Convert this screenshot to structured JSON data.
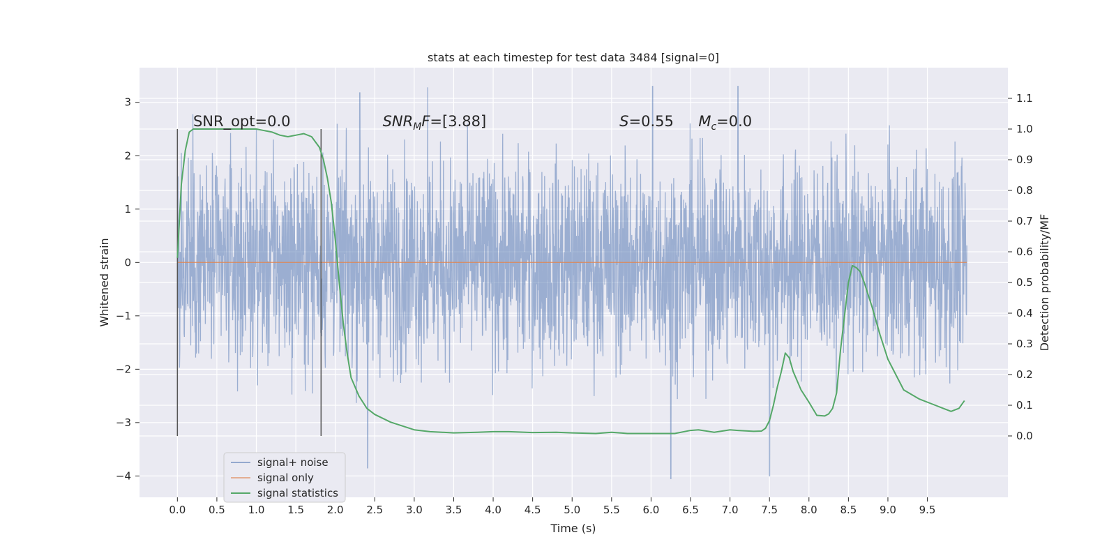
{
  "chart_data": {
    "type": "line",
    "title": "stats at each timestep for test data 3484 [signal=0]",
    "xlabel": "Time (s)",
    "ylabel": "Whitened strain",
    "y2label": "Detection probability/MF",
    "xlim": [
      -0.48,
      10.52
    ],
    "ylim": [
      -4.4,
      3.65
    ],
    "y2lim": [
      -0.2,
      1.2
    ],
    "xticks": [
      0.0,
      0.5,
      1.0,
      1.5,
      2.0,
      2.5,
      3.0,
      3.5,
      4.0,
      4.5,
      5.0,
      5.5,
      6.0,
      6.5,
      7.0,
      7.5,
      8.0,
      8.5,
      9.0,
      9.5
    ],
    "xtick_labels": [
      "0.0",
      "0.5",
      "1.0",
      "1.5",
      "2.0",
      "2.5",
      "3.0",
      "3.5",
      "4.0",
      "4.5",
      "5.0",
      "5.5",
      "6.0",
      "6.5",
      "7.0",
      "7.5",
      "8.0",
      "8.5",
      "9.0",
      "9.5"
    ],
    "yticks": [
      3,
      2,
      1,
      0,
      -1,
      -2,
      -3,
      -4
    ],
    "ytick_labels": [
      "3",
      "2",
      "1",
      "0",
      "−1",
      "−2",
      "−3",
      "−4"
    ],
    "y2ticks": [
      1.1,
      1.0,
      0.9,
      0.8,
      0.7,
      0.6,
      0.5,
      0.4,
      0.3,
      0.2,
      0.1,
      0.0
    ],
    "y2tick_labels": [
      "1.1",
      "1.0",
      "0.9",
      "0.8",
      "0.7",
      "0.6",
      "0.5",
      "0.4",
      "0.3",
      "0.2",
      "0.1",
      "0.0"
    ],
    "grid": true,
    "legend_position": "lower-left",
    "series": [
      {
        "name": "signal+ noise",
        "color": "#4c72b0",
        "axis": "left",
        "description": "dense whitened noise trace, roughly ±1.5 with spikes to about ±3",
        "envelope": {
          "t_start": 0.0,
          "t_end": 10.0,
          "typical_abs": 1.5,
          "max": 3.3,
          "min": -4.05
        },
        "spikes": [
          {
            "t": 2.41,
            "y": -3.85
          },
          {
            "t": 6.25,
            "y": -4.05
          },
          {
            "t": 7.5,
            "y": -4.0
          },
          {
            "t": 6.02,
            "y": 3.3
          },
          {
            "t": 3.17,
            "y": 3.28
          },
          {
            "t": 7.1,
            "y": 3.3
          },
          {
            "t": 2.31,
            "y": 3.18
          }
        ]
      },
      {
        "name": "signal only",
        "color": "#dd8452",
        "axis": "left",
        "x": [
          0.0,
          10.0
        ],
        "y": [
          0.0,
          0.0
        ]
      },
      {
        "name": "signal statistics",
        "color": "#55a868",
        "axis": "right",
        "x": [
          0.0,
          0.05,
          0.1,
          0.15,
          0.2,
          0.3,
          0.5,
          0.8,
          1.0,
          1.1,
          1.2,
          1.3,
          1.4,
          1.5,
          1.6,
          1.7,
          1.8,
          1.85,
          1.9,
          1.95,
          2.0,
          2.05,
          2.1,
          2.15,
          2.2,
          2.3,
          2.4,
          2.5,
          2.7,
          3.0,
          3.2,
          3.5,
          3.8,
          4.0,
          4.2,
          4.5,
          4.8,
          5.0,
          5.3,
          5.5,
          5.7,
          6.0,
          6.3,
          6.5,
          6.6,
          6.8,
          7.0,
          7.1,
          7.3,
          7.4,
          7.45,
          7.5,
          7.55,
          7.6,
          7.65,
          7.7,
          7.75,
          7.8,
          7.9,
          8.0,
          8.1,
          8.2,
          8.25,
          8.3,
          8.35,
          8.4,
          8.5,
          8.55,
          8.6,
          8.65,
          8.7,
          8.8,
          8.9,
          9.0,
          9.2,
          9.4,
          9.6,
          9.7,
          9.8,
          9.9,
          9.97
        ],
        "y": [
          0.58,
          0.82,
          0.93,
          0.99,
          1.0,
          1.0,
          1.0,
          1.0,
          1.0,
          0.995,
          0.99,
          0.98,
          0.975,
          0.98,
          0.985,
          0.975,
          0.94,
          0.9,
          0.84,
          0.76,
          0.64,
          0.5,
          0.37,
          0.27,
          0.19,
          0.13,
          0.09,
          0.07,
          0.045,
          0.02,
          0.014,
          0.01,
          0.012,
          0.014,
          0.014,
          0.011,
          0.012,
          0.01,
          0.008,
          0.012,
          0.008,
          0.008,
          0.008,
          0.018,
          0.02,
          0.012,
          0.02,
          0.018,
          0.015,
          0.016,
          0.025,
          0.05,
          0.1,
          0.16,
          0.21,
          0.27,
          0.255,
          0.21,
          0.15,
          0.11,
          0.067,
          0.065,
          0.072,
          0.09,
          0.14,
          0.28,
          0.5,
          0.555,
          0.548,
          0.535,
          0.5,
          0.42,
          0.33,
          0.25,
          0.15,
          0.12,
          0.1,
          0.09,
          0.08,
          0.09,
          0.115
        ]
      }
    ],
    "vlines": [
      {
        "t": 0.0,
        "y_from": -3.25,
        "y_to": 2.5,
        "color": "#555555"
      },
      {
        "t": 1.82,
        "y_from": -3.25,
        "y_to": 2.5,
        "color": "#555555"
      }
    ],
    "annotations": [
      {
        "kind": "plain",
        "text": "SNR_opt=0.0",
        "x": 0.2,
        "y": 2.55
      },
      {
        "kind": "snr_mf",
        "main": "SNR",
        "sub": "M",
        "tail": "F",
        "rest": "=[3.88]",
        "x": 2.6,
        "y": 2.55
      },
      {
        "kind": "italic",
        "main": "S",
        "rest": "=0.55",
        "x": 5.6,
        "y": 2.55
      },
      {
        "kind": "mc",
        "main": "M",
        "sub": "c",
        "rest": "=0.0",
        "x": 6.6,
        "y": 2.55
      }
    ]
  }
}
